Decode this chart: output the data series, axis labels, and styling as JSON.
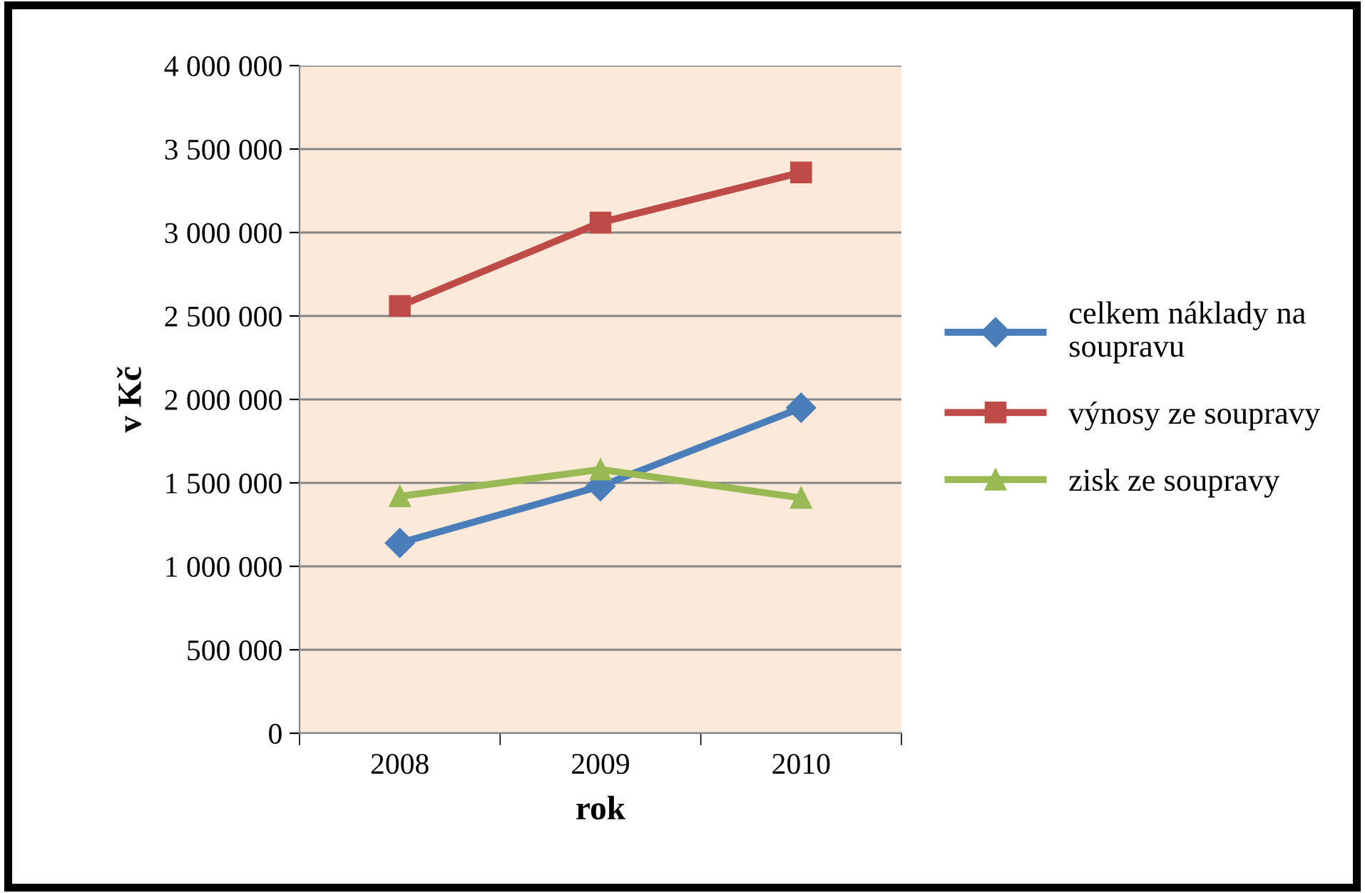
{
  "chart_data": {
    "type": "line",
    "xlabel": "rok",
    "ylabel": "v Kč",
    "categories": [
      "2008",
      "2009",
      "2010"
    ],
    "series": [
      {
        "name": "celkem náklady na soupravu",
        "color": "#4a7ebb",
        "values": [
          1140000,
          1480000,
          1950000
        ],
        "marker": "diamond"
      },
      {
        "name": "výnosy ze soupravy",
        "color": "#be4b48",
        "values": [
          2560000,
          3060000,
          3360000
        ],
        "marker": "square"
      },
      {
        "name": "zisk ze soupravy",
        "color": "#98b954",
        "values": [
          1420000,
          1580000,
          1410000
        ],
        "marker": "triangle"
      }
    ],
    "ylim": [
      0,
      4000000
    ],
    "yticks": [
      {
        "value": 0,
        "label": "0"
      },
      {
        "value": 500000,
        "label": "500 000"
      },
      {
        "value": 1000000,
        "label": "1 000 000"
      },
      {
        "value": 1500000,
        "label": "1 500 000"
      },
      {
        "value": 2000000,
        "label": "2 000 000"
      },
      {
        "value": 2500000,
        "label": "2 500 000"
      },
      {
        "value": 3000000,
        "label": "3 000 000"
      },
      {
        "value": 3500000,
        "label": "3 500 000"
      },
      {
        "value": 4000000,
        "label": "4 000 000"
      }
    ],
    "grid": "y",
    "legend": "right",
    "line_style": "solid"
  }
}
